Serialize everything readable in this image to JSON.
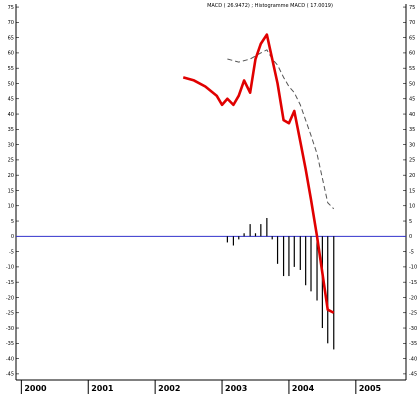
{
  "chart_data": {
    "type": "line",
    "title": "MACD ( 26.9472) ; Histogramme MACD ( 17.0019)",
    "xlabel": "",
    "ylabel": "",
    "x_ticks": [
      "2000",
      "2001",
      "2002",
      "2003",
      "2004",
      "2005"
    ],
    "x_range": [
      1999.92,
      2005.75
    ],
    "ylim": [
      -47,
      76
    ],
    "y_ticks": [
      75,
      70,
      65,
      60,
      55,
      50,
      45,
      40,
      35,
      30,
      25,
      20,
      15,
      10,
      5,
      0,
      -5,
      -10,
      -15,
      -20,
      -25,
      -30,
      -35,
      -40,
      -45
    ],
    "zero_line": 0,
    "colors": {
      "macd": "#e00000",
      "signal": "#555555",
      "histogram": "#000000",
      "zero": "#3333cc",
      "axis": "#000000"
    },
    "series": [
      {
        "name": "",
        "style": "macd",
        "x": [
          2002.42,
          2002.58,
          2002.75,
          2002.92,
          2003.0,
          2003.08,
          2003.17,
          2003.25,
          2003.33,
          2003.42,
          2003.5,
          2003.58,
          2003.67,
          2003.75,
          2003.83,
          2003.92,
          2004.0,
          2004.08,
          2004.17,
          2004.25,
          2004.33,
          2004.42,
          2004.5,
          2004.58,
          2004.67
        ],
        "values": [
          52,
          51,
          49,
          46,
          43,
          45,
          43,
          46,
          51,
          47,
          58,
          63,
          66,
          58,
          50,
          38,
          37,
          41,
          31,
          22,
          12,
          0,
          -12,
          -24,
          -25
        ]
      },
      {
        "name": "",
        "style": "signal",
        "x": [
          2003.08,
          2003.25,
          2003.42,
          2003.58,
          2003.67,
          2003.75,
          2003.83,
          2003.92,
          2004.0,
          2004.08,
          2004.17,
          2004.25,
          2004.33,
          2004.42,
          2004.5,
          2004.58,
          2004.67
        ],
        "values": [
          58,
          57,
          58,
          60,
          61,
          58,
          56,
          52,
          49,
          47,
          43,
          38,
          33,
          27,
          19,
          11,
          9
        ]
      },
      {
        "name": "",
        "style": "histogram",
        "x": [
          2003.08,
          2003.17,
          2003.25,
          2003.33,
          2003.42,
          2003.5,
          2003.58,
          2003.67,
          2003.75,
          2003.83,
          2003.92,
          2004.0,
          2004.08,
          2004.17,
          2004.25,
          2004.33,
          2004.42,
          2004.5,
          2004.58,
          2004.67
        ],
        "values": [
          -2,
          -3,
          -1,
          1,
          4,
          1,
          4,
          6,
          -1,
          -9,
          -13,
          -13,
          -10,
          -11,
          -16,
          -18,
          -21,
          -30,
          -35,
          -37
        ]
      }
    ]
  }
}
